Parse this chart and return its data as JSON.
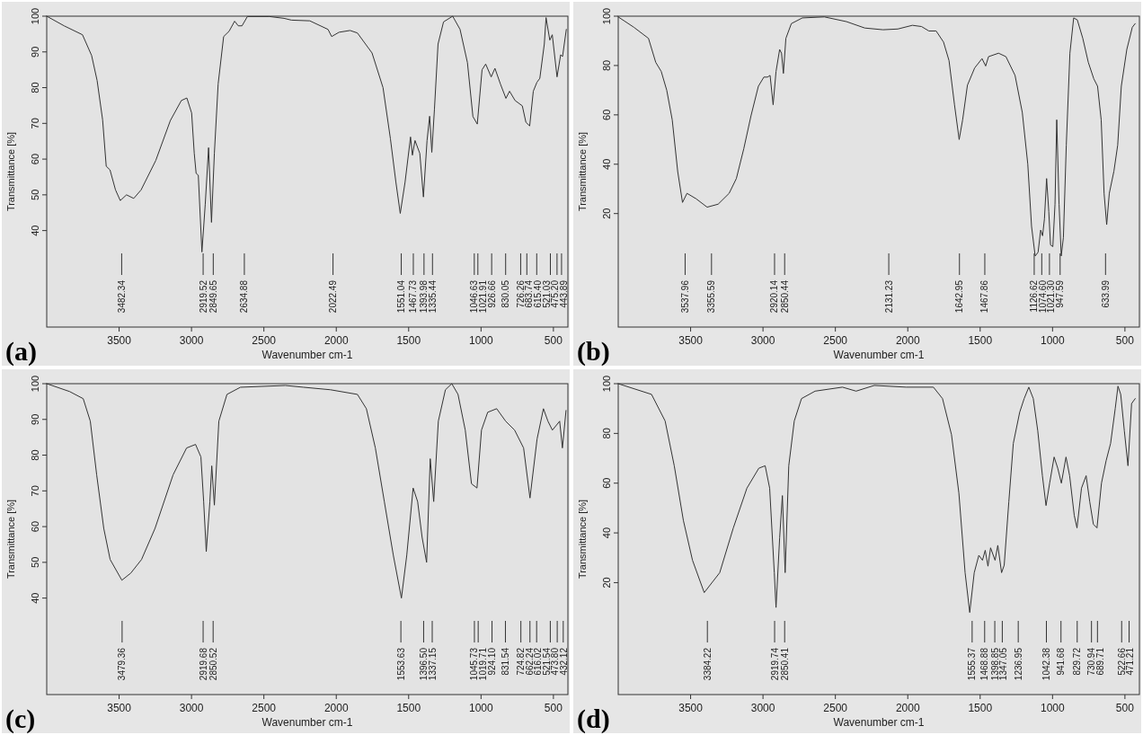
{
  "chart_data": [
    {
      "type": "line",
      "title": "(a)",
      "xlabel": "Wavenumber cm-1",
      "ylabel": "Transmittance [%]",
      "color": "#333333",
      "xlim": [
        4000,
        400
      ],
      "ylim": [
        13,
        100
      ],
      "xticks": [
        3500,
        3000,
        2500,
        2000,
        1500,
        1000,
        500
      ],
      "yticks": [
        40,
        50,
        60,
        70,
        80,
        90,
        100
      ],
      "x": [
        4000,
        3880,
        3753,
        3690,
        3652,
        3614,
        3589,
        3563,
        3525,
        3492,
        3449,
        3399,
        3348,
        3247,
        3146,
        3070,
        3032,
        2999,
        2981,
        2968,
        2953,
        2928,
        2905,
        2882,
        2862,
        2842,
        2816,
        2778,
        2740,
        2702,
        2677,
        2651,
        2614,
        2462,
        2361,
        2310,
        2183,
        2057,
        2032,
        1981,
        1905,
        1854,
        1753,
        1677,
        1626,
        1588,
        1558,
        1525,
        1487,
        1474,
        1456,
        1423,
        1398,
        1373,
        1355,
        1340,
        1322,
        1297,
        1259,
        1196,
        1145,
        1094,
        1056,
        1026,
        993,
        968,
        930,
        904,
        866,
        828,
        803,
        765,
        715,
        690,
        664,
        639,
        614,
        594,
        563,
        551,
        525,
        508,
        475,
        450,
        437,
        411
      ],
      "values": [
        100,
        97.3,
        94.8,
        89,
        82,
        71,
        58,
        57,
        51.4,
        48.4,
        50,
        49,
        51.4,
        59.6,
        70.8,
        76.4,
        77.1,
        72.9,
        61.6,
        56,
        55.5,
        34,
        47.4,
        63.2,
        42.3,
        61.6,
        81,
        94.3,
        95.8,
        98.6,
        97.3,
        97.3,
        99.9,
        99.9,
        99.4,
        98.9,
        98.7,
        96.3,
        94.3,
        95.5,
        96,
        95.3,
        89.7,
        80,
        65.7,
        53.5,
        44.8,
        53.5,
        66.2,
        61.1,
        65.2,
        61.6,
        49.4,
        65.2,
        72,
        61.9,
        73.9,
        92.2,
        98.4,
        100,
        96.3,
        87,
        71.9,
        69.8,
        85,
        86.6,
        83,
        85.4,
        81,
        77,
        79,
        76.4,
        74.9,
        70.3,
        69.3,
        79,
        81.5,
        82.6,
        92.2,
        99.6,
        93.3,
        94.8,
        83,
        89.2,
        88.7,
        96.3
      ],
      "ref_lines": [
        {
          "axis": "x",
          "value": 3482.34,
          "label": "3482.34"
        },
        {
          "axis": "x",
          "value": 2919.52,
          "label": "2919.52"
        },
        {
          "axis": "x",
          "value": 2849.65,
          "label": "2849.65"
        },
        {
          "axis": "x",
          "value": 2634.88,
          "label": "2634.88"
        },
        {
          "axis": "x",
          "value": 2022.49,
          "label": "2022.49"
        },
        {
          "axis": "x",
          "value": 1551.04,
          "label": "1551.04"
        },
        {
          "axis": "x",
          "value": 1467.73,
          "label": "1467.73"
        },
        {
          "axis": "x",
          "value": 1393.98,
          "label": "1393.98"
        },
        {
          "axis": "x",
          "value": 1335.44,
          "label": "1335.44"
        },
        {
          "axis": "x",
          "value": 1046.63,
          "label": "1046.63"
        },
        {
          "axis": "x",
          "value": 1021.91,
          "label": "1021.91"
        },
        {
          "axis": "x",
          "value": 926.66,
          "label": "926.66"
        },
        {
          "axis": "x",
          "value": 830.05,
          "label": "830.05"
        },
        {
          "axis": "x",
          "value": 726.26,
          "label": "726.26"
        },
        {
          "axis": "x",
          "value": 683.74,
          "label": "683.74"
        },
        {
          "axis": "x",
          "value": 615.4,
          "label": "615.40"
        },
        {
          "axis": "x",
          "value": 521.03,
          "label": "521.03"
        },
        {
          "axis": "x",
          "value": 475.2,
          "label": "475.20"
        },
        {
          "axis": "x",
          "value": 443.89,
          "label": "443.89"
        }
      ]
    },
    {
      "type": "line",
      "title": "(b)",
      "xlabel": "Wavenumber cm-1",
      "ylabel": "Transmittance [%]",
      "color": "#333333",
      "xlim": [
        4000,
        400
      ],
      "ylim": [
        -26,
        100
      ],
      "xticks": [
        3500,
        3000,
        2500,
        2000,
        1500,
        1000,
        500
      ],
      "yticks": [
        20,
        40,
        60,
        80,
        100
      ],
      "x": [
        4000,
        3892,
        3791,
        3741,
        3703,
        3665,
        3627,
        3589,
        3556,
        3525,
        3462,
        3386,
        3310,
        3234,
        3184,
        3133,
        3083,
        3032,
        2994,
        2969,
        2951,
        2930,
        2910,
        2885,
        2872,
        2859,
        2842,
        2804,
        2728,
        2576,
        2424,
        2297,
        2171,
        2069,
        1968,
        1905,
        1854,
        1804,
        1753,
        1715,
        1677,
        1645,
        1621,
        1588,
        1538,
        1487,
        1462,
        1442,
        1373,
        1322,
        1259,
        1209,
        1171,
        1145,
        1120,
        1100,
        1082,
        1069,
        1056,
        1041,
        1026,
        1014,
        998,
        983,
        971,
        955,
        940,
        925,
        905,
        880,
        854,
        829,
        791,
        753,
        715,
        689,
        664,
        644,
        626,
        608,
        576,
        550,
        525,
        487,
        449,
        429
      ],
      "values": [
        99.7,
        95.5,
        91,
        81.3,
        77.6,
        70,
        58,
        37,
        24.5,
        28.2,
        26,
        22.6,
        23.8,
        28.2,
        34.2,
        46.2,
        59.6,
        71.6,
        75.3,
        75.3,
        76,
        64.1,
        77.6,
        86.5,
        85,
        76.8,
        91,
        97,
        99.3,
        99.7,
        97.8,
        95.2,
        94.5,
        94.8,
        96.3,
        95.8,
        94,
        94,
        89.5,
        82,
        64,
        50,
        58,
        72,
        79,
        82.8,
        79.8,
        83.6,
        85,
        83.6,
        76,
        61,
        40,
        14.8,
        2.8,
        4.3,
        13.3,
        11,
        17.8,
        34.2,
        20.8,
        7.3,
        6.6,
        23.8,
        58,
        23.8,
        2.8,
        10.3,
        47.7,
        85,
        99.3,
        98.5,
        91,
        81.3,
        74.6,
        71.6,
        58,
        28.2,
        15.5,
        28.2,
        37.2,
        47.7,
        71.6,
        86.5,
        95.5,
        97
      ],
      "ref_lines": [
        {
          "axis": "x",
          "value": 3537.96,
          "label": "3537.96"
        },
        {
          "axis": "x",
          "value": 3355.59,
          "label": "3355.59"
        },
        {
          "axis": "x",
          "value": 2920.14,
          "label": "2920.14"
        },
        {
          "axis": "x",
          "value": 2850.44,
          "label": "2850.44"
        },
        {
          "axis": "x",
          "value": 2131.23,
          "label": "2131.23"
        },
        {
          "axis": "x",
          "value": 1642.95,
          "label": "1642.95"
        },
        {
          "axis": "x",
          "value": 1467.86,
          "label": "1467.86"
        },
        {
          "axis": "x",
          "value": 1126.62,
          "label": "1126.62"
        },
        {
          "axis": "x",
          "value": 1074.6,
          "label": "1074.60"
        },
        {
          "axis": "x",
          "value": 1021.3,
          "label": "1021.30"
        },
        {
          "axis": "x",
          "value": 947.59,
          "label": "947.59"
        },
        {
          "axis": "x",
          "value": 633.99,
          "label": "633.99"
        }
      ]
    },
    {
      "type": "line",
      "title": "(c)",
      "xlabel": "Wavenumber cm-1",
      "ylabel": "Transmittance [%]",
      "color": "#333333",
      "xlim": [
        4000,
        400
      ],
      "ylim": [
        13,
        100
      ],
      "xticks": [
        3500,
        3000,
        2500,
        2000,
        1500,
        1000,
        500
      ],
      "yticks": [
        40,
        50,
        60,
        70,
        80,
        90,
        100
      ],
      "x": [
        4000,
        3842,
        3748,
        3699,
        3655,
        3606,
        3562,
        3481,
        3419,
        3345,
        3252,
        3127,
        3034,
        2972,
        2935,
        2916,
        2898,
        2873,
        2860,
        2842,
        2811,
        2755,
        2662,
        2351,
        2227,
        2041,
        1854,
        1792,
        1730,
        1668,
        1606,
        1550,
        1513,
        1469,
        1438,
        1407,
        1376,
        1351,
        1327,
        1295,
        1246,
        1202,
        1159,
        1109,
        1066,
        1028,
        997,
        954,
        892,
        830,
        768,
        706,
        662,
        613,
        569,
        538,
        507,
        457,
        438,
        413
      ],
      "values": [
        100,
        97.8,
        95.8,
        89.5,
        74.5,
        59.5,
        50.8,
        45,
        47,
        50.8,
        59.5,
        74.5,
        82,
        83,
        79.5,
        67,
        53,
        67,
        77,
        66,
        89.5,
        97,
        99,
        99.5,
        99,
        98.3,
        97,
        93,
        82,
        67,
        52,
        40,
        52,
        70.8,
        67,
        57,
        50,
        79,
        67,
        89.5,
        98.3,
        100,
        97,
        87,
        72,
        70.8,
        87,
        92,
        93,
        89.5,
        87,
        82,
        68,
        84.5,
        93,
        89.5,
        87,
        89.5,
        82,
        92.5
      ],
      "ref_lines": [
        {
          "axis": "x",
          "value": 3479.36,
          "label": "3479.36"
        },
        {
          "axis": "x",
          "value": 2919.68,
          "label": "2919.68"
        },
        {
          "axis": "x",
          "value": 2850.52,
          "label": "2850.52"
        },
        {
          "axis": "x",
          "value": 1553.63,
          "label": "1553.63"
        },
        {
          "axis": "x",
          "value": 1396.5,
          "label": "1396.50"
        },
        {
          "axis": "x",
          "value": 1337.15,
          "label": "1337.15"
        },
        {
          "axis": "x",
          "value": 1045.73,
          "label": "1045.73"
        },
        {
          "axis": "x",
          "value": 1019.71,
          "label": "1019.71"
        },
        {
          "axis": "x",
          "value": 924.1,
          "label": "924.10"
        },
        {
          "axis": "x",
          "value": 831.54,
          "label": "831.54"
        },
        {
          "axis": "x",
          "value": 724.82,
          "label": "724.82"
        },
        {
          "axis": "x",
          "value": 662.24,
          "label": "662.24"
        },
        {
          "axis": "x",
          "value": 616.02,
          "label": "616.02"
        },
        {
          "axis": "x",
          "value": 521.54,
          "label": "521.54"
        },
        {
          "axis": "x",
          "value": 473.8,
          "label": "473.80"
        },
        {
          "axis": "x",
          "value": 432.12,
          "label": "432.12"
        }
      ]
    },
    {
      "type": "line",
      "title": "(d)",
      "xlabel": "Wavenumber cm-1",
      "ylabel": "Transmittance [%]",
      "color": "#333333",
      "xlim": [
        4000,
        400
      ],
      "ylim": [
        -25,
        100
      ],
      "xticks": [
        3500,
        3000,
        2500,
        2000,
        1500,
        1000,
        500
      ],
      "yticks": [
        20,
        40,
        60,
        80,
        100
      ],
      "x": [
        4000,
        3770,
        3676,
        3613,
        3550,
        3487,
        3406,
        3299,
        3205,
        3111,
        3029,
        2985,
        2954,
        2922,
        2910,
        2885,
        2866,
        2847,
        2822,
        2784,
        2734,
        2640,
        2451,
        2357,
        2231,
        2012,
        1823,
        1760,
        1698,
        1647,
        1604,
        1572,
        1541,
        1509,
        1484,
        1465,
        1446,
        1428,
        1397,
        1378,
        1352,
        1334,
        1302,
        1271,
        1227,
        1196,
        1164,
        1133,
        1102,
        1070,
        1045,
        1020,
        989,
        964,
        939,
        907,
        882,
        850,
        831,
        800,
        768,
        743,
        718,
        693,
        662,
        630,
        599,
        567,
        548,
        529,
        504,
        479,
        454,
        429
      ],
      "values": [
        100,
        95.7,
        85,
        67,
        45,
        29,
        16,
        24,
        42,
        58,
        66,
        67,
        58,
        24,
        10,
        38,
        55,
        24,
        67,
        85,
        94,
        97,
        98.6,
        97,
        99.3,
        98.6,
        98.6,
        94,
        79.5,
        56,
        24,
        8,
        24,
        31,
        29,
        33,
        26.6,
        34,
        29,
        35,
        24,
        27,
        52.5,
        76,
        88.5,
        94,
        98.6,
        94,
        81,
        63,
        51,
        60,
        70.5,
        66,
        60,
        70.5,
        63,
        47,
        42,
        58,
        63,
        52.5,
        43.5,
        42,
        60,
        69,
        76,
        90,
        99,
        95.7,
        81,
        67,
        92,
        94
      ],
      "ref_lines": [
        {
          "axis": "x",
          "value": 3384.22,
          "label": "3384.22"
        },
        {
          "axis": "x",
          "value": 2919.74,
          "label": "2919.74"
        },
        {
          "axis": "x",
          "value": 2850.41,
          "label": "2850.41"
        },
        {
          "axis": "x",
          "value": 1555.37,
          "label": "1555.37"
        },
        {
          "axis": "x",
          "value": 1468.88,
          "label": "1468.88"
        },
        {
          "axis": "x",
          "value": 1398.85,
          "label": "1398.85"
        },
        {
          "axis": "x",
          "value": 1347.05,
          "label": "1347.05"
        },
        {
          "axis": "x",
          "value": 1236.95,
          "label": "1236.95"
        },
        {
          "axis": "x",
          "value": 1042.38,
          "label": "1042.38"
        },
        {
          "axis": "x",
          "value": 941.68,
          "label": "941.68"
        },
        {
          "axis": "x",
          "value": 829.72,
          "label": "829.72"
        },
        {
          "axis": "x",
          "value": 730.94,
          "label": "730.94"
        },
        {
          "axis": "x",
          "value": 689.71,
          "label": "689.71"
        },
        {
          "axis": "x",
          "value": 522.66,
          "label": "522.66"
        },
        {
          "axis": "x",
          "value": 471.21,
          "label": "471.21"
        }
      ]
    }
  ]
}
